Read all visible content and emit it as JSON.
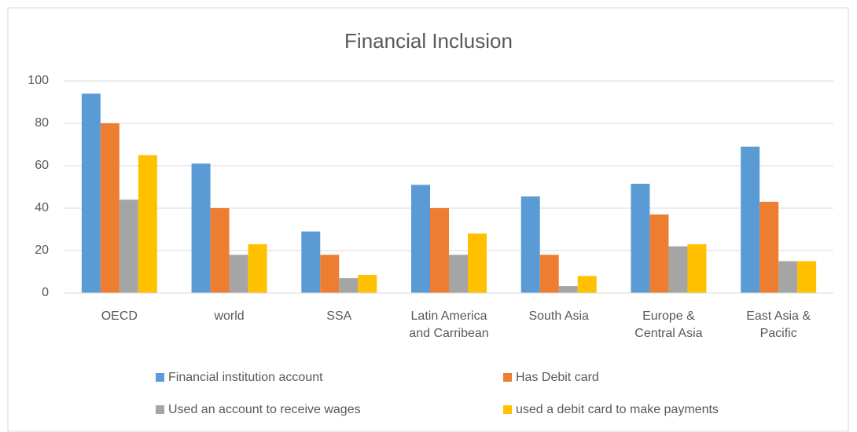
{
  "chart_data": {
    "type": "bar",
    "title": "Financial Inclusion",
    "categories": [
      "OECD",
      "world",
      "SSA",
      "Latin America and Carribean",
      "South Asia",
      "Europe & Central Asia",
      "East Asia & Pacific"
    ],
    "series": [
      {
        "name": "Financial institution account",
        "color": "#5b9bd5",
        "values": [
          94,
          61,
          29,
          51,
          45.5,
          51.5,
          69
        ]
      },
      {
        "name": "Has Debit card",
        "color": "#ed7d31",
        "values": [
          80,
          40,
          18,
          40,
          18,
          37,
          43
        ]
      },
      {
        "name": "Used an account to receive wages",
        "color": "#a5a5a5",
        "values": [
          44,
          18,
          7,
          18,
          3.3,
          22,
          15
        ]
      },
      {
        "name": "used a debit card to make payments",
        "color": "#ffc000",
        "values": [
          65,
          23,
          8.5,
          28,
          8,
          23,
          15
        ]
      }
    ],
    "ylim": [
      0,
      100
    ],
    "yticks": [
      0,
      20,
      40,
      60,
      80,
      100
    ],
    "grid": true,
    "legend": "bottom"
  }
}
